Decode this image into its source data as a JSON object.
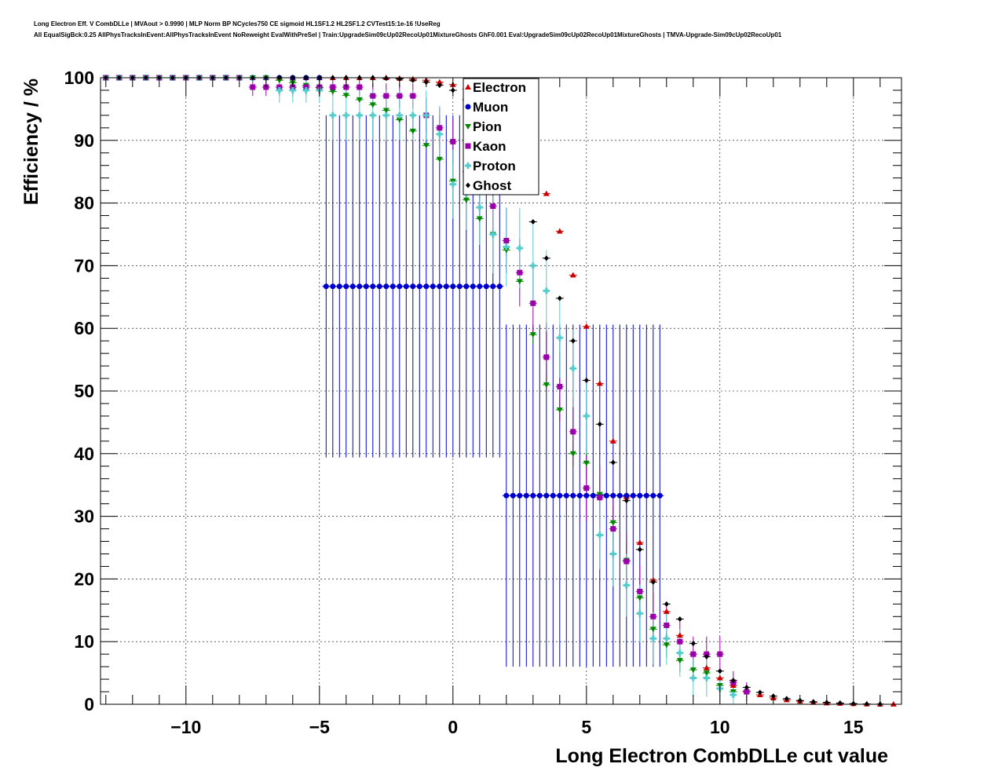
{
  "title_line_1": "Long Electron Eff. V CombDLLe | MVAout > 0.9990 | MLP Norm BP NCycles750 CE sigmoid HL1SF1.2 HL2SF1.2 CVTest15:1e-16 !UseReg",
  "title_line_2": "All EqualSigBck:0.25 AllPhysTracksInEvent:AllPhysTracksInEvent NoReweight EvalWithPreSel | Train:UpgradeSim09cUp02RecoUp01MixtureGhosts GhF0.001 Eval:UpgradeSim09cUp02RecoUp01MixtureGhosts | TMVA-Upgrade-Sim09cUp02RecoUp01",
  "chart_data": {
    "type": "scatter",
    "xlabel": "Long Electron CombDLLe cut value",
    "ylabel": "Efficiency / %",
    "xlim": [
      -13.2,
      16.8
    ],
    "ylim": [
      0,
      100
    ],
    "x_ticks": [
      -10,
      -5,
      0,
      5,
      10,
      15
    ],
    "x_tick_labels": [
      "−10",
      "−5",
      "0",
      "5",
      "10",
      "15"
    ],
    "y_ticks": [
      0,
      10,
      20,
      30,
      40,
      50,
      60,
      70,
      80,
      90,
      100
    ],
    "y_tick_labels": [
      "0",
      "10",
      "20",
      "30",
      "40",
      "50",
      "60",
      "70",
      "80",
      "90",
      "100"
    ],
    "grid": true,
    "legend_position": "top-center",
    "series": [
      {
        "name": "Electron",
        "color": "#cc0000",
        "marker": "triangle-up",
        "x": [
          -13,
          -12.5,
          -12,
          -11.5,
          -11,
          -10.5,
          -10,
          -9.5,
          -9,
          -8.5,
          -8,
          -7.5,
          -7,
          -6.5,
          -6,
          -5.5,
          -5,
          -4.5,
          -4,
          -3.5,
          -3,
          -2.5,
          -2,
          -1.5,
          -1,
          -0.5,
          0,
          0.5,
          1,
          1.5,
          2,
          2.5,
          3,
          3.5,
          4,
          4.5,
          5,
          5.5,
          6,
          6.5,
          7,
          7.5,
          8,
          8.5,
          9,
          9.5,
          10,
          10.5,
          11,
          11.5,
          12,
          12.5,
          13,
          13.5,
          14,
          14.5,
          15,
          15.5,
          16,
          16.5
        ],
        "y": [
          100,
          100,
          100,
          100,
          100,
          100,
          100,
          100,
          100,
          100,
          100,
          100,
          100,
          100,
          100,
          100,
          100,
          100,
          100,
          100,
          100,
          100,
          99.9,
          99.8,
          99.6,
          99.3,
          98.9,
          98.2,
          97.2,
          95.8,
          93.3,
          90.3,
          86.3,
          81.5,
          75.5,
          68.5,
          60.3,
          51.2,
          42.0,
          33.1,
          25.8,
          19.8,
          14.8,
          11.0,
          8.0,
          5.8,
          4.2,
          3.0,
          2.1,
          1.5,
          1.0,
          0.7,
          0.5,
          0.3,
          0.2,
          0.15,
          0.1,
          0.05,
          0.02,
          0.01
        ],
        "err": [
          0,
          0,
          0,
          0,
          0,
          0,
          0,
          0,
          0,
          0,
          0,
          0,
          0,
          0,
          0,
          0,
          0,
          0,
          0,
          0,
          0,
          0,
          0,
          0,
          0,
          0,
          0,
          0,
          0,
          0,
          0,
          0,
          0,
          0,
          0,
          0,
          0,
          0,
          0,
          0,
          0,
          0,
          0,
          0,
          0,
          0,
          0,
          0,
          0,
          0,
          0,
          0,
          0,
          0,
          0,
          0,
          0,
          0,
          0,
          0
        ]
      },
      {
        "name": "Muon",
        "color": "#0000cc",
        "marker": "circle",
        "x": [
          -13,
          -12.5,
          -12,
          -11.5,
          -11,
          -10.5,
          -10,
          -9.5,
          -9,
          -8.5,
          -8,
          -7.5,
          -7,
          -6.5,
          -6,
          -5.5,
          -5,
          -4.75,
          -4.5,
          -4.25,
          -4,
          -3.75,
          -3.5,
          -3.25,
          -3,
          -2.75,
          -2.5,
          -2.25,
          -2,
          -1.75,
          -1.5,
          -1.25,
          -1,
          -0.75,
          -0.5,
          -0.25,
          0,
          0.25,
          0.5,
          0.75,
          1,
          1.25,
          1.5,
          1.75,
          2,
          2.25,
          2.5,
          2.75,
          3,
          3.25,
          3.5,
          3.75,
          4,
          4.25,
          4.5,
          4.75,
          5,
          5.25,
          5.5,
          5.75,
          6,
          6.25,
          6.5,
          6.75,
          7,
          7.25,
          7.5,
          7.75
        ],
        "y": [
          100,
          100,
          100,
          100,
          100,
          100,
          100,
          100,
          100,
          100,
          100,
          100,
          100,
          100,
          100,
          100,
          100,
          66.7,
          66.7,
          66.7,
          66.7,
          66.7,
          66.7,
          66.7,
          66.7,
          66.7,
          66.7,
          66.7,
          66.7,
          66.7,
          66.7,
          66.7,
          66.7,
          66.7,
          66.7,
          66.7,
          66.7,
          66.7,
          66.7,
          66.7,
          66.7,
          66.7,
          66.7,
          66.7,
          33.3,
          33.3,
          33.3,
          33.3,
          33.3,
          33.3,
          33.3,
          33.3,
          33.3,
          33.3,
          33.3,
          33.3,
          33.3,
          33.3,
          33.3,
          33.3,
          33.3,
          33.3,
          33.3,
          33.3,
          33.3,
          33.3,
          33.3,
          33.3
        ],
        "err": [
          0,
          0,
          0,
          0,
          0,
          0,
          0,
          0,
          0,
          0,
          0,
          0,
          0,
          0,
          0,
          0,
          0,
          27.3,
          27.3,
          27.3,
          27.3,
          27.3,
          27.3,
          27.3,
          27.3,
          27.3,
          27.3,
          27.3,
          27.3,
          27.3,
          27.3,
          27.3,
          27.3,
          27.3,
          27.3,
          27.3,
          27.3,
          27.3,
          27.3,
          27.3,
          27.3,
          27.3,
          27.3,
          27.3,
          27.3,
          27.3,
          27.3,
          27.3,
          27.3,
          27.3,
          27.3,
          27.3,
          27.3,
          27.3,
          27.3,
          27.3,
          27.3,
          27.3,
          27.3,
          27.3,
          27.3,
          27.3,
          27.3,
          27.3,
          27.3,
          27.3,
          27.3,
          27.3
        ]
      },
      {
        "name": "Pion",
        "color": "#008800",
        "marker": "triangle-down",
        "x": [
          -13,
          -12.5,
          -12,
          -11.5,
          -11,
          -10.5,
          -10,
          -9.5,
          -9,
          -8.5,
          -8,
          -7.5,
          -7,
          -6.5,
          -6,
          -5.5,
          -5,
          -4.5,
          -4,
          -3.5,
          -3,
          -2.5,
          -2,
          -1.5,
          -1,
          -0.5,
          0,
          0.5,
          1,
          1.5,
          2,
          2.5,
          3,
          3.5,
          4,
          4.5,
          5,
          5.5,
          6,
          6.5,
          7,
          7.5,
          8,
          8.5,
          9,
          9.5,
          10,
          10.5
        ],
        "y": [
          100,
          100,
          100,
          100,
          100,
          100,
          100,
          100,
          100,
          100,
          100,
          100,
          100,
          99.6,
          99.2,
          98.8,
          98.4,
          97.8,
          97.2,
          96.5,
          95.7,
          94.8,
          93.3,
          91.5,
          89.2,
          87.0,
          83.5,
          80.5,
          77.5,
          75.0,
          72.5,
          67.5,
          59.0,
          51.0,
          47.0,
          40.0,
          38.5,
          33.5,
          29.0,
          23.0,
          17.0,
          12.0,
          9.5,
          7.0,
          5.5,
          5.0,
          3.0,
          2.0
        ],
        "err": [
          0,
          0,
          0,
          0,
          0,
          0,
          0,
          0,
          0,
          0,
          0,
          0,
          0,
          0,
          0,
          0,
          0,
          0,
          0,
          0,
          0,
          0,
          0,
          0,
          0,
          0,
          0.5,
          0.5,
          0.6,
          0.7,
          0.9,
          1.2,
          1.5,
          1.7,
          2.0,
          2.2,
          2.4,
          2.6,
          2.7,
          2.8,
          2.6,
          2.3,
          2.0,
          1.8,
          1.6,
          1.5,
          1.2,
          1.0
        ]
      },
      {
        "name": "Kaon",
        "color": "#9900aa",
        "marker": "square",
        "x": [
          -13,
          -12.5,
          -12,
          -11.5,
          -11,
          -10.5,
          -10,
          -9.5,
          -9,
          -8.5,
          -8,
          -7.5,
          -7,
          -6.5,
          -6,
          -5.5,
          -5,
          -4.5,
          -4,
          -3.5,
          -3,
          -2.5,
          -2,
          -1.5,
          -1,
          -0.5,
          0,
          0.5,
          1,
          1.5,
          2,
          2.5,
          3,
          3.5,
          4,
          4.5,
          5,
          5.5,
          6,
          6.5,
          7,
          7.5,
          8,
          8.5,
          9,
          9.5,
          10,
          10.5,
          11
        ],
        "y": [
          100,
          100,
          100,
          100,
          100,
          100,
          100,
          100,
          100,
          100,
          100,
          98.5,
          98.5,
          98.5,
          98.5,
          98.5,
          98.5,
          98.5,
          98.5,
          98.5,
          97.1,
          97.1,
          97.1,
          97.1,
          94.0,
          92.0,
          89.8,
          85.0,
          82.0,
          79.5,
          74.0,
          68.9,
          64.0,
          55.4,
          50.7,
          43.5,
          34.5,
          33.0,
          28.0,
          22.8,
          18.0,
          14.0,
          12.6,
          10.0,
          8.0,
          8.0,
          8.0,
          3.5,
          2.0
        ],
        "err": [
          0,
          0,
          0,
          0,
          0,
          0,
          0,
          0,
          0,
          0,
          0,
          1.4,
          1.4,
          1.4,
          1.4,
          1.4,
          1.4,
          1.4,
          1.4,
          1.4,
          2.0,
          2.0,
          2.0,
          2.0,
          2.8,
          3.2,
          3.6,
          4.2,
          4.5,
          4.8,
          5.2,
          5.4,
          5.5,
          5.6,
          5.6,
          5.4,
          5.2,
          5.0,
          4.8,
          4.6,
          4.2,
          3.8,
          3.6,
          3.2,
          2.8,
          2.8,
          2.8,
          1.8,
          1.5
        ]
      },
      {
        "name": "Proton",
        "color": "#55cccc",
        "marker": "cross",
        "x": [
          -13,
          -12.5,
          -12,
          -11.5,
          -11,
          -10.5,
          -10,
          -9.5,
          -9,
          -8.5,
          -8,
          -7.5,
          -7,
          -6.5,
          -6,
          -5.5,
          -5,
          -4.5,
          -4,
          -3.5,
          -3,
          -2.5,
          -2,
          -1.5,
          -1,
          -0.5,
          0,
          0.5,
          1,
          1.5,
          2,
          2.5,
          3,
          3.5,
          4,
          4.5,
          5,
          5.5,
          6,
          6.5,
          7,
          7.5,
          8,
          8.5,
          9,
          9.5,
          10,
          10.5
        ],
        "y": [
          100,
          100,
          100,
          100,
          100,
          100,
          100,
          100,
          100,
          100,
          100,
          100,
          100,
          98.0,
          98.0,
          98.0,
          98.0,
          94.0,
          94.0,
          94.0,
          94.0,
          94.0,
          94.0,
          94.0,
          94.0,
          91.0,
          83.0,
          81.5,
          79.3,
          75.0,
          73.0,
          72.8,
          70.0,
          66.0,
          58.5,
          53.6,
          46.0,
          27.0,
          24.0,
          19.0,
          14.5,
          10.5,
          10.5,
          8.2,
          4.2,
          4.2,
          2.5,
          1.5
        ],
        "err": [
          0,
          0,
          0,
          0,
          0,
          0,
          0,
          0,
          0,
          0,
          0,
          0,
          0,
          2.0,
          2.0,
          2.0,
          2.0,
          4.0,
          4.0,
          4.0,
          4.0,
          4.0,
          4.0,
          4.0,
          4.0,
          4.5,
          5.5,
          5.8,
          6.0,
          6.2,
          6.3,
          6.4,
          6.5,
          6.5,
          6.4,
          6.2,
          6.0,
          5.5,
          5.2,
          5.0,
          4.6,
          4.2,
          4.2,
          3.8,
          3.0,
          3.0,
          2.5,
          2.0
        ]
      },
      {
        "name": "Ghost",
        "color": "#000000",
        "marker": "diamond",
        "x": [
          -13,
          -12.5,
          -12,
          -11.5,
          -11,
          -10.5,
          -10,
          -9.5,
          -9,
          -8.5,
          -8,
          -7.5,
          -7,
          -6.5,
          -6,
          -5.5,
          -5,
          -4.5,
          -4,
          -3.5,
          -3,
          -2.5,
          -2,
          -1.5,
          -1,
          -0.5,
          0,
          0.5,
          1,
          1.5,
          2,
          2.5,
          3,
          3.5,
          4,
          4.5,
          5,
          5.5,
          6,
          6.5,
          7,
          7.5,
          8,
          8.5,
          9,
          9.5,
          10,
          10.5,
          11,
          11.5,
          12,
          12.5,
          13,
          13.5,
          14,
          14.5,
          15,
          15.5,
          16
        ],
        "y": [
          100,
          100,
          100,
          100,
          100,
          100,
          100,
          100,
          100,
          100,
          100,
          100,
          100,
          100,
          100,
          100,
          100,
          100,
          100,
          100,
          100,
          99.9,
          99.8,
          99.6,
          99.3,
          98.8,
          98.0,
          96.5,
          94.5,
          91.5,
          87.5,
          82.0,
          77.0,
          71.2,
          64.8,
          58.0,
          51.7,
          44.7,
          38.6,
          32.5,
          24.7,
          19.5,
          16.0,
          13.6,
          9.7,
          7.6,
          5.3,
          3.8,
          2.7,
          1.9,
          1.3,
          0.9,
          0.6,
          0.4,
          0.3,
          0.2,
          0.1,
          0.05,
          0.02
        ],
        "err": [
          0,
          0,
          0,
          0,
          0,
          0,
          0,
          0,
          0,
          0,
          0,
          0,
          0,
          0,
          0,
          0,
          0,
          0,
          0,
          0,
          0,
          0,
          0,
          0,
          0,
          0,
          0,
          0,
          0,
          0,
          0,
          0,
          0,
          0,
          0,
          0,
          0,
          0,
          0,
          0,
          0,
          0,
          0,
          0,
          0,
          0,
          0,
          0,
          0,
          0,
          0,
          0,
          0,
          0,
          0,
          0,
          0,
          0,
          0
        ]
      }
    ]
  }
}
